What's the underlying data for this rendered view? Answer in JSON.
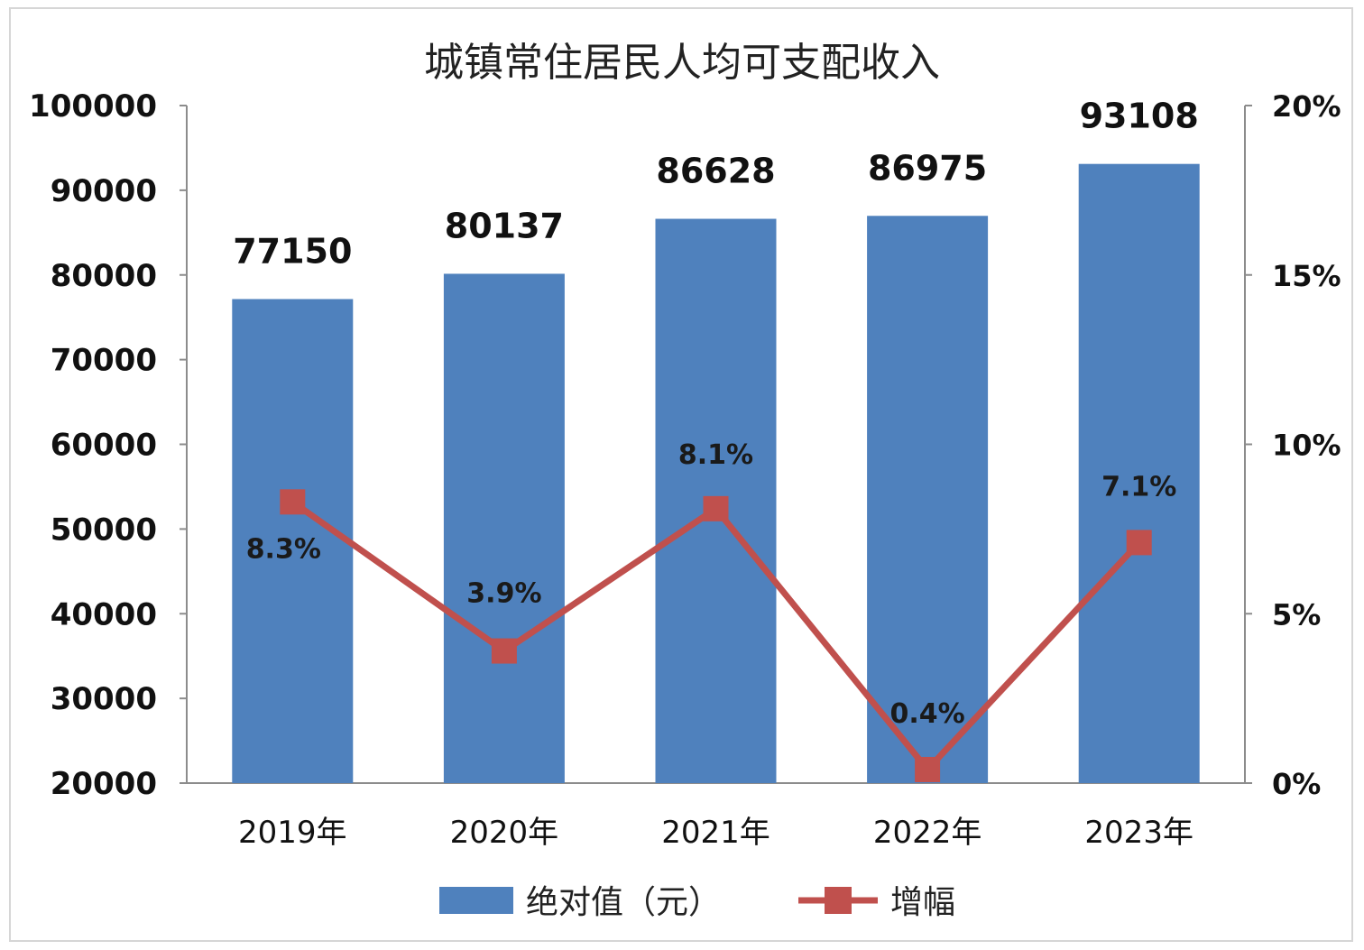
{
  "chart_data": {
    "type": "bar",
    "title": "城镇常住居民人均可支配收入",
    "categories": [
      "2019年",
      "2020年",
      "2021年",
      "2022年",
      "2023年"
    ],
    "bar_labels": [
      "77150",
      "80137",
      "86628",
      "86975",
      "93108"
    ],
    "line_labels": [
      "8.3%",
      "3.9%",
      "8.1%",
      "0.4%",
      "7.1%"
    ],
    "series": [
      {
        "name": "绝对值（元）",
        "type": "bar",
        "axis": "left",
        "color": "#4f81bd",
        "values": [
          77150,
          80137,
          86628,
          86975,
          93108
        ]
      },
      {
        "name": "增幅",
        "type": "line",
        "axis": "right",
        "color": "#c0504d",
        "marker": "square",
        "values": [
          8.3,
          3.9,
          8.1,
          0.4,
          7.1
        ]
      }
    ],
    "y_left": {
      "ylim": [
        20000,
        100000
      ],
      "ticks": [
        "100000",
        "90000",
        "80000",
        "70000",
        "60000",
        "50000",
        "40000",
        "30000",
        "20000"
      ]
    },
    "y_right": {
      "ylim": [
        0,
        20
      ],
      "unit": "%",
      "ticks": [
        "20%",
        "15%",
        "10%",
        "5%",
        "0%"
      ]
    },
    "grid": false,
    "legend": "bottom"
  }
}
